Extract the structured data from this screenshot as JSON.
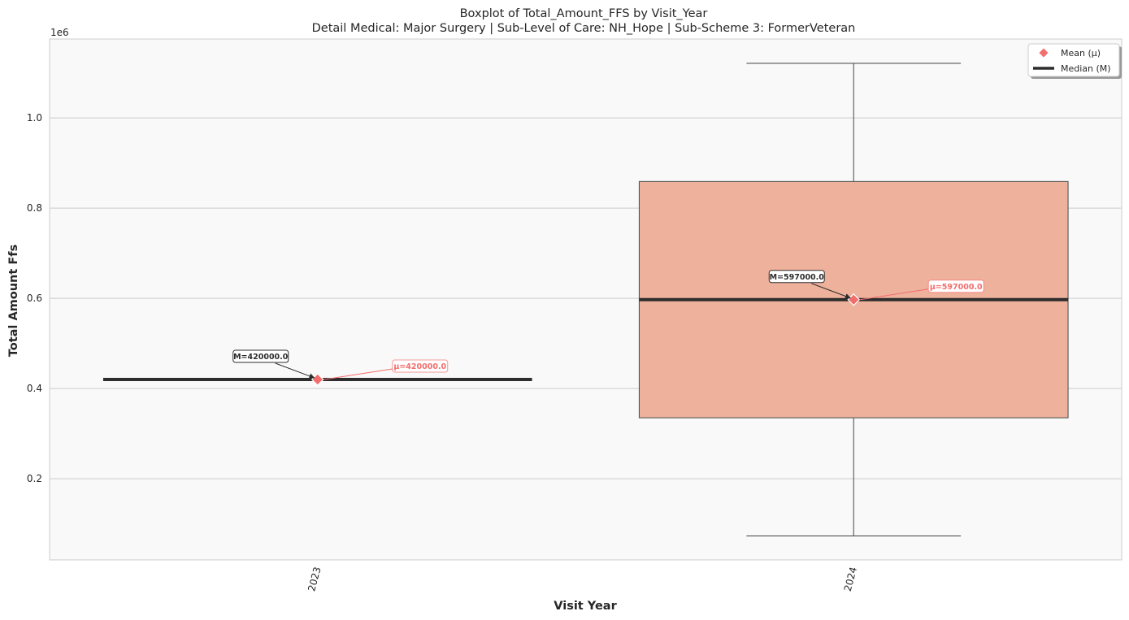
{
  "chart_data": {
    "type": "box",
    "title": "Boxplot of Total_Amount_FFS by Visit_Year",
    "subtitle": "Detail Medical: Major Surgery | Sub-Level of Care: NH_Hope | Sub-Scheme 3: FormerVeteran",
    "xlabel": "Visit Year",
    "ylabel": "Total Amount Ffs",
    "y_offset_text": "1e6",
    "ylim": [
      0.02,
      1.175
    ],
    "yticks": [
      0.2,
      0.4,
      0.6,
      0.8,
      1.0
    ],
    "ytick_labels": [
      "0.2",
      "0.4",
      "0.6",
      "0.8",
      "1.0"
    ],
    "grid": true,
    "legend_position": "top-right",
    "legend": [
      {
        "marker": "diamond",
        "label": "Mean (μ)",
        "color": "#f46d6d"
      },
      {
        "marker": "line",
        "label": "Median (M)",
        "color": "#2d2d2d"
      }
    ],
    "categories": [
      "2023",
      "2024"
    ],
    "boxes": [
      {
        "category": "2023",
        "whisker_low": 0.42,
        "q1": 0.42,
        "median": 0.42,
        "q3": 0.42,
        "whisker_high": 0.42,
        "mean": 0.42,
        "median_label": "M=420000.0",
        "mean_label": "μ=420000.0",
        "fill": "#ecc7b8"
      },
      {
        "category": "2024",
        "whisker_low": 0.073,
        "q1": 0.335,
        "median": 0.597,
        "q3": 0.859,
        "whisker_high": 1.121,
        "mean": 0.597,
        "median_label": "M=597000.0",
        "mean_label": "μ=597000.0",
        "fill": "#eeb19b"
      }
    ],
    "colors": {
      "background": "#f9f9f9",
      "grid": "#cccccc",
      "median": "#2d2d2d",
      "mean": "#f46d6d",
      "box_edge": "#555555"
    }
  }
}
